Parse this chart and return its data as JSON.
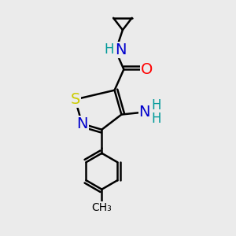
{
  "background_color": "#ebebeb",
  "atom_colors": {
    "C": "#000000",
    "N": "#0000cc",
    "S": "#cccc00",
    "O": "#ff0000",
    "NH": "#009999",
    "H": "#009999"
  },
  "bond_color": "#000000",
  "bond_width": 1.8,
  "font_size_atoms": 14,
  "font_size_small": 12
}
